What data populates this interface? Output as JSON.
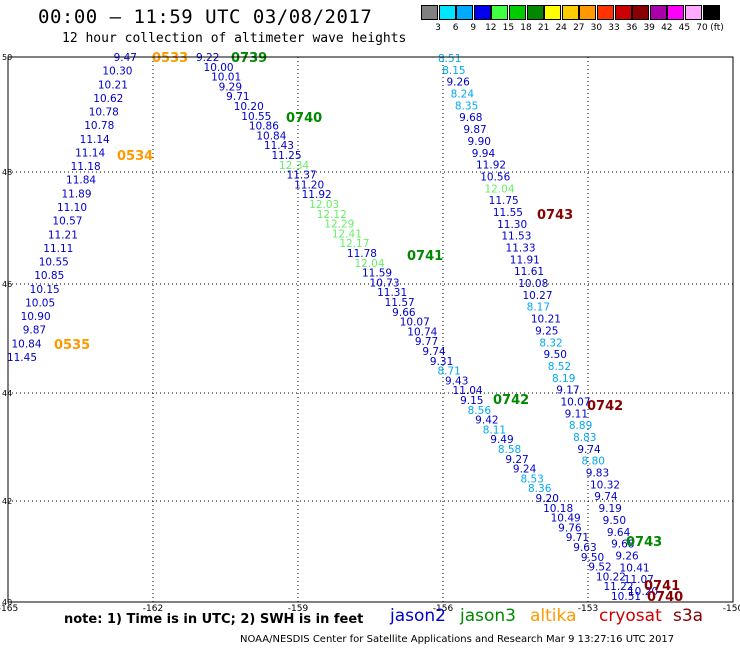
{
  "header": {
    "title": "00:00 – 11:59 UTC 03/08/2017",
    "subtitle": "12 hour collection of altimeter wave heights"
  },
  "legend": {
    "unit": "(ft)",
    "bins": [
      {
        "label": "3",
        "color": "#808080"
      },
      {
        "label": "6",
        "color": "#00e5ff"
      },
      {
        "label": "9",
        "color": "#00aaff"
      },
      {
        "label": "12",
        "color": "#0000ee"
      },
      {
        "label": "15",
        "color": "#40ff40"
      },
      {
        "label": "18",
        "color": "#00cc00"
      },
      {
        "label": "21",
        "color": "#008800"
      },
      {
        "label": "24",
        "color": "#ffff00"
      },
      {
        "label": "27",
        "color": "#ffcc00"
      },
      {
        "label": "30",
        "color": "#ff9900"
      },
      {
        "label": "33",
        "color": "#ff3300"
      },
      {
        "label": "36",
        "color": "#cc0000"
      },
      {
        "label": "39",
        "color": "#880000"
      },
      {
        "label": "42",
        "color": "#aa00aa"
      },
      {
        "label": "45",
        "color": "#ff00ff"
      },
      {
        "label": "70",
        "color": "#ffaaff"
      },
      {
        "label": "",
        "color": "#000000"
      }
    ]
  },
  "axes": {
    "x_ticks": [
      "-165",
      "-162",
      "-159",
      "-156",
      "-153",
      "-150"
    ],
    "y_ticks": [
      "50",
      "48",
      "46",
      "44",
      "42",
      "40"
    ]
  },
  "colors": {
    "jason2": "#0000cc",
    "jason3": "#008800",
    "altika": "#ff9900",
    "cryosat": "#cc0000",
    "s3a": "#880000",
    "light_blue": "#00aaee",
    "light_green": "#66ee66"
  },
  "tracks": {
    "track_a": {
      "values": [
        "9.47",
        "10.30",
        "10.21",
        "10.62",
        "10.78",
        "10.78",
        "11.14",
        "11.14",
        "11.18",
        "11.84",
        "11.89",
        "11.10",
        "10.57",
        "11.21",
        "11.11",
        "10.55",
        "10.85",
        "10.15",
        "10.05",
        "10.90",
        "9.87",
        "10.84",
        "11.45"
      ]
    },
    "track_b": {
      "values": [
        "9.22",
        "10.00",
        "10.01",
        "9.29",
        "9.71",
        "10.20",
        "10.55",
        "10.86",
        "10.84",
        "11.43",
        "11.25",
        "12.34",
        "11.37",
        "11.20",
        "11.92",
        "12.03",
        "12.12",
        "12.29",
        "12.41",
        "12.17",
        "11.78",
        "12.04",
        "11.59",
        "10.73",
        "11.31",
        "11.57",
        "9.66",
        "10.07",
        "10.74",
        "9.77",
        "9.74",
        "9.31",
        "8.71",
        "9.43",
        "11.04",
        "9.15",
        "8.56",
        "9.42",
        "8.11",
        "9.49",
        "8.58",
        "9.27",
        "9.24",
        "8.53",
        "8.36",
        "9.20",
        "10.18",
        "10.49",
        "9.76",
        "9.71",
        "9.63",
        "9.50",
        "9.52",
        "10.22",
        "11.22",
        "10.51"
      ],
      "colors": [
        "j",
        "j",
        "j",
        "j",
        "j",
        "j",
        "j",
        "j",
        "j",
        "j",
        "j",
        "g",
        "j",
        "j",
        "j",
        "g",
        "g",
        "g",
        "g",
        "g",
        "j",
        "g",
        "j",
        "j",
        "j",
        "j",
        "j",
        "j",
        "j",
        "j",
        "j",
        "j",
        "c",
        "j",
        "j",
        "j",
        "c",
        "j",
        "c",
        "j",
        "c",
        "j",
        "j",
        "c",
        "c",
        "j",
        "j",
        "j",
        "j",
        "j",
        "j",
        "j",
        "j",
        "j",
        "j",
        "j"
      ]
    },
    "track_c": {
      "values": [
        "8.51",
        "8.15",
        "9.26",
        "8.24",
        "8.35",
        "9.68",
        "9.87",
        "9.90",
        "9.94",
        "11.92",
        "10.56",
        "12.04",
        "11.75",
        "11.55",
        "11.30",
        "11.53",
        "11.33",
        "11.91",
        "11.61",
        "10.08",
        "10.27",
        "8.17",
        "10.21",
        "9.25",
        "8.32",
        "9.50",
        "8.52",
        "8.19",
        "9.17",
        "10.07",
        "9.11",
        "8.89",
        "8.83",
        "9.74",
        "8.80",
        "9.83",
        "10.32",
        "9.74",
        "9.19",
        "9.50",
        "9.64",
        "9.68",
        "9.26",
        "10.41",
        "11.07",
        "10.20"
      ],
      "colors": [
        "c",
        "c",
        "j",
        "c",
        "c",
        "j",
        "j",
        "j",
        "j",
        "j",
        "j",
        "g",
        "j",
        "j",
        "j",
        "j",
        "j",
        "j",
        "j",
        "j",
        "j",
        "c",
        "j",
        "j",
        "c",
        "j",
        "c",
        "c",
        "j",
        "j",
        "j",
        "c",
        "c",
        "j",
        "c",
        "j",
        "j",
        "j",
        "j",
        "j",
        "j",
        "j",
        "j",
        "j",
        "j",
        "j"
      ]
    }
  },
  "time_labels": [
    {
      "text": "0533",
      "sat": "altika"
    },
    {
      "text": "0534",
      "sat": "altika"
    },
    {
      "text": "0535",
      "sat": "altika"
    },
    {
      "text": "0739",
      "sat": "jason3"
    },
    {
      "text": "0740",
      "sat": "jason3"
    },
    {
      "text": "0741",
      "sat": "jason3"
    },
    {
      "text": "0742",
      "sat": "jason3"
    },
    {
      "text": "0743",
      "sat": "jason3"
    },
    {
      "text": "0743",
      "sat": "s3a"
    },
    {
      "text": "0742",
      "sat": "s3a"
    },
    {
      "text": "0741",
      "sat": "s3a"
    },
    {
      "text": "0740",
      "sat": "s3a"
    }
  ],
  "footer": {
    "note": "note: 1) Time is in UTC; 2) SWH is in feet",
    "satellites": [
      {
        "name": "jason2",
        "color": "#0000cc"
      },
      {
        "name": "jason3",
        "color": "#008800"
      },
      {
        "name": "altika",
        "color": "#ff9900"
      },
      {
        "name": "cryosat",
        "color": "#cc0000"
      },
      {
        "name": "s3a",
        "color": "#880000"
      }
    ],
    "credit": "NOAA/NESDIS Center for Satellite Applications and Research    Mar  9 13:27:16 UTC 2017"
  }
}
